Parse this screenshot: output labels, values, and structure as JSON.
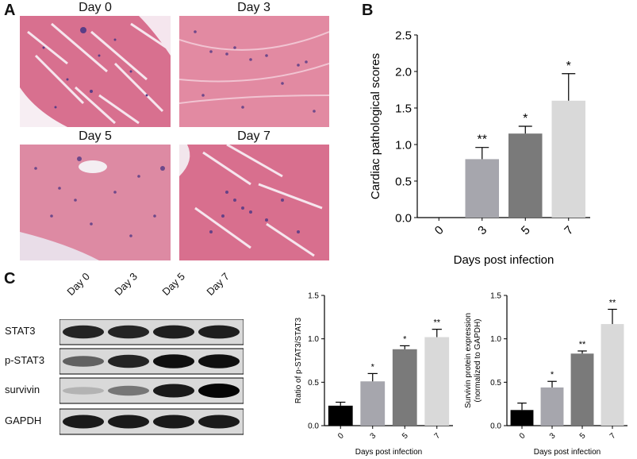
{
  "panels": {
    "A": "A",
    "B": "B",
    "C": "C"
  },
  "histology": {
    "labels": [
      "Day 0",
      "Day 3",
      "Day 5",
      "Day 7"
    ]
  },
  "blot": {
    "lanes": [
      "Day 0",
      "Day 3",
      "Day 5",
      "Day 7"
    ],
    "rows": [
      {
        "label": "STAT3",
        "intensity": [
          0.85,
          0.85,
          0.88,
          0.88
        ]
      },
      {
        "label": "p-STAT3",
        "intensity": [
          0.55,
          0.85,
          0.95,
          0.95
        ]
      },
      {
        "label": "survivin",
        "intensity": [
          0.15,
          0.45,
          0.9,
          1.0
        ]
      },
      {
        "label": "GAPDH",
        "intensity": [
          0.9,
          0.9,
          0.9,
          0.9
        ]
      }
    ]
  },
  "colors": {
    "bar0": "#000000",
    "bar3": "#a6a6ad",
    "bar5": "#7a7a7a",
    "bar7": "#d9d9d9",
    "tissue_pink": "#e0829c",
    "nuclei": "#5a3d86"
  },
  "chart_data": [
    {
      "type": "bar",
      "categories": [
        "0",
        "3",
        "5",
        "7"
      ],
      "values": [
        0,
        0.8,
        1.15,
        1.6
      ],
      "errors": [
        0,
        0.16,
        0.1,
        0.37
      ],
      "significance": [
        "",
        "**",
        "*",
        "*"
      ],
      "xlabel": "Days post infection",
      "ylabel": "Cardiac pathological scores",
      "ylim": [
        0,
        2.5
      ],
      "yticks": [
        "0.0",
        "0.5",
        "1.0",
        "1.5",
        "2.0",
        "2.5"
      ]
    },
    {
      "type": "bar",
      "categories": [
        "0",
        "3",
        "5",
        "7"
      ],
      "values": [
        0.23,
        0.51,
        0.88,
        1.02
      ],
      "errors": [
        0.04,
        0.09,
        0.04,
        0.09
      ],
      "significance": [
        "",
        "*",
        "*",
        "**"
      ],
      "xlabel": "Days post infection",
      "ylabel": "Ratio of p-STAT3/STAT3",
      "ylim": [
        0,
        1.5
      ],
      "yticks": [
        "0.0",
        "0.5",
        "1.0",
        "1.5"
      ]
    },
    {
      "type": "bar",
      "categories": [
        "0",
        "3",
        "5",
        "7"
      ],
      "values": [
        0.18,
        0.44,
        0.83,
        1.17
      ],
      "errors": [
        0.08,
        0.07,
        0.03,
        0.17
      ],
      "significance": [
        "",
        "*",
        "**",
        "**"
      ],
      "xlabel": "Days post infection",
      "ylabel": "Survivin protein expression (normalized to GAPDH)",
      "ylabel_lines": [
        "Survivin protein expression",
        "(normalized to GAPDH)"
      ],
      "ylim": [
        0,
        1.5
      ],
      "yticks": [
        "0.0",
        "0.5",
        "1.0",
        "1.5"
      ]
    }
  ]
}
